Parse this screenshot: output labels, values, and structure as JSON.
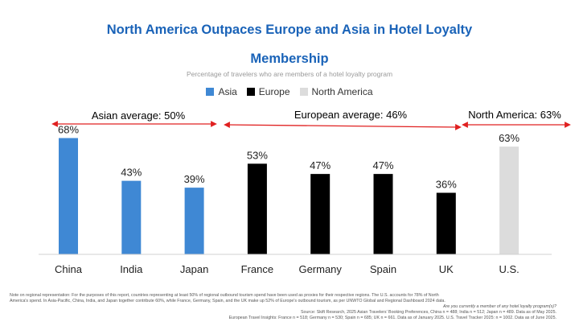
{
  "header": {
    "title_line1": "North America Outpaces Europe and Asia in Hotel Loyalty",
    "title_line2": "Membership",
    "subtitle": "Percentage of travelers who are members of a hotel loyalty program"
  },
  "legend": [
    {
      "label": "Asia",
      "color": "#3f88d4"
    },
    {
      "label": "Europe",
      "color": "#000000"
    },
    {
      "label": "North America",
      "color": "#dcdcdc"
    }
  ],
  "annotations": {
    "asia": "Asian average: 50%",
    "europe": "European average: 46%",
    "north_america": "North America: 63%"
  },
  "chart_data": {
    "type": "bar",
    "categories": [
      "China",
      "India",
      "Japan",
      "France",
      "Germany",
      "Spain",
      "UK",
      "U.S."
    ],
    "values": [
      68,
      43,
      39,
      53,
      47,
      47,
      36,
      63
    ],
    "value_labels": [
      "68%",
      "43%",
      "39%",
      "53%",
      "47%",
      "47%",
      "36%",
      "63%"
    ],
    "groups": [
      "Asia",
      "Asia",
      "Asia",
      "Europe",
      "Europe",
      "Europe",
      "Europe",
      "North America"
    ],
    "group_colors": {
      "Asia": "#3f88d4",
      "Europe": "#000000",
      "North America": "#dcdcdc"
    },
    "ylim": [
      0,
      80
    ],
    "xlabel": "",
    "ylabel": "",
    "grid": false,
    "legend_position": "top-center"
  },
  "notes": {
    "line1": "Note on regional representation: For the purposes of this report, countries representing at least 50% of regional outbound tourism spend have been used as proxies for their respective regions. The U.S. accounts for 78% of North",
    "line2": "America's spend. In Asia-Pacific, China, India, and Japan together contribute 60%, while France, Germany, Spain, and the UK make up 52% of Europe's outbound tourism, as per UNWTO Global and Regional Dashboard 2024 data.",
    "line3": "Are you currently a member of any hotel loyalty program(s)?",
    "line4": "Source: Skift Research, 2025 Asian Travelers' Booking Preferences, China n = 488; India n = 512; Japan n = 489. Data as of May 2025.",
    "line5": "European Travel Insights: France n = 518; Germany n = 530; Spain n = 685; UK n = 661. Data as of January 2025. U.S. Travel Tracker 2025: n = 1002. Data as of June 2025."
  }
}
